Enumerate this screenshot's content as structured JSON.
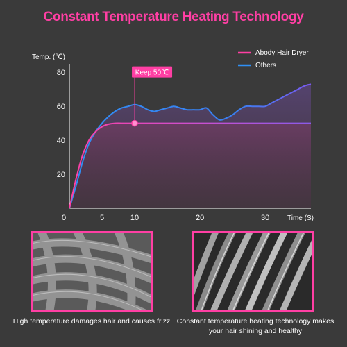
{
  "title": "Constant Temperature Heating Technology",
  "colors": {
    "background": "#3a3a3a",
    "title": "#ff3fa4",
    "abody": "#ff3fa4",
    "others": "#2f8ff5",
    "accent_border": "#ff3fa4"
  },
  "chart_data": {
    "type": "line",
    "ylabel": "Temp. (℃)",
    "xlabel": "Time (S)",
    "xlim": [
      0,
      37
    ],
    "ylim": [
      0,
      85
    ],
    "xticks": [
      "0",
      "5",
      "10",
      "20",
      "30"
    ],
    "yticks": [
      "20",
      "40",
      "60",
      "80"
    ],
    "annotation": {
      "label": "Keep 50℃",
      "x": 10,
      "y": 50
    },
    "series": [
      {
        "name": "Abody Hair Dryer",
        "color": "#ff3fa4",
        "x": [
          0,
          1,
          2,
          3,
          4,
          5,
          6,
          7,
          8,
          10,
          15,
          20,
          25,
          30,
          35,
          37
        ],
        "y": [
          0,
          17,
          31,
          40,
          45,
          48,
          49.5,
          50,
          50,
          50,
          50,
          50,
          50,
          50,
          50,
          50
        ]
      },
      {
        "name": "Others",
        "color": "#2f8ff5",
        "x": [
          0,
          1,
          2,
          3,
          4,
          5,
          6,
          7,
          8,
          9,
          10,
          11,
          12,
          13,
          14,
          15,
          16,
          17,
          18,
          19,
          20,
          21,
          22,
          23,
          24,
          25,
          26,
          27,
          28,
          29,
          30,
          31,
          32,
          33,
          34,
          35,
          36,
          37
        ],
        "y": [
          0,
          13,
          27,
          38,
          45,
          50,
          54,
          57,
          59,
          60,
          61,
          60,
          58,
          57,
          58,
          59,
          60,
          59,
          58,
          58,
          58,
          59,
          55,
          52,
          53,
          55,
          58,
          60,
          60,
          60,
          60,
          62,
          64,
          66,
          68,
          70,
          72,
          73
        ]
      }
    ],
    "legend_position": "top-right"
  },
  "captions": {
    "left": "High temperature damages hair and causes frizz",
    "right": "Constant temperature heating technology makes your hair shining and healthy"
  }
}
